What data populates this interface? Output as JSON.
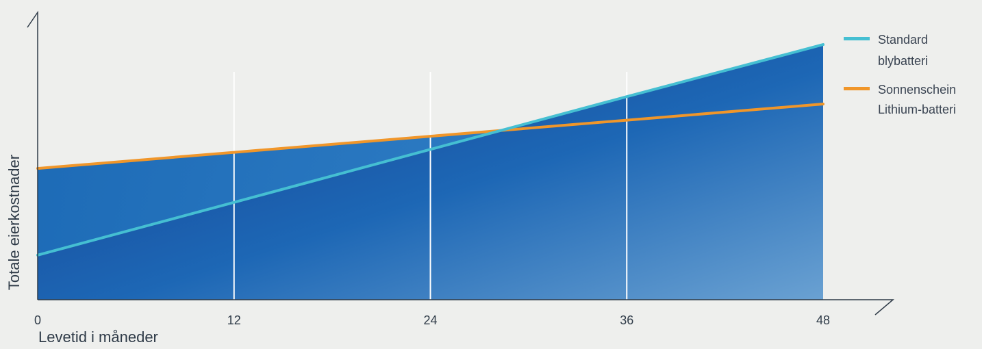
{
  "chart_data": {
    "type": "area",
    "x": [
      0,
      12,
      24,
      36,
      48
    ],
    "tick_labels": [
      "0",
      "12",
      "24",
      "36",
      "48"
    ],
    "xlabel": "Levetid i måneder",
    "ylabel": "Totale eierkostnader",
    "xlim": [
      0,
      48
    ],
    "ylim": [
      0,
      100
    ],
    "grid": true,
    "legend_position": "right",
    "series": [
      {
        "name": [
          "Standard",
          "blybatteri"
        ],
        "color": "#45bfd2",
        "values": [
          18,
          39.3,
          60.7,
          82,
          103
        ]
      },
      {
        "name": [
          "Sonnenschein",
          "Lithium-batteri"
        ],
        "color": "#f0962a",
        "values": [
          53,
          59.5,
          66,
          72.5,
          79
        ]
      }
    ],
    "fill_colors": [
      "#143b8d",
      "#1d67b5",
      "#6aa1d2"
    ],
    "axis_color": "#2f3b48",
    "grid_color": "#ffffff"
  }
}
